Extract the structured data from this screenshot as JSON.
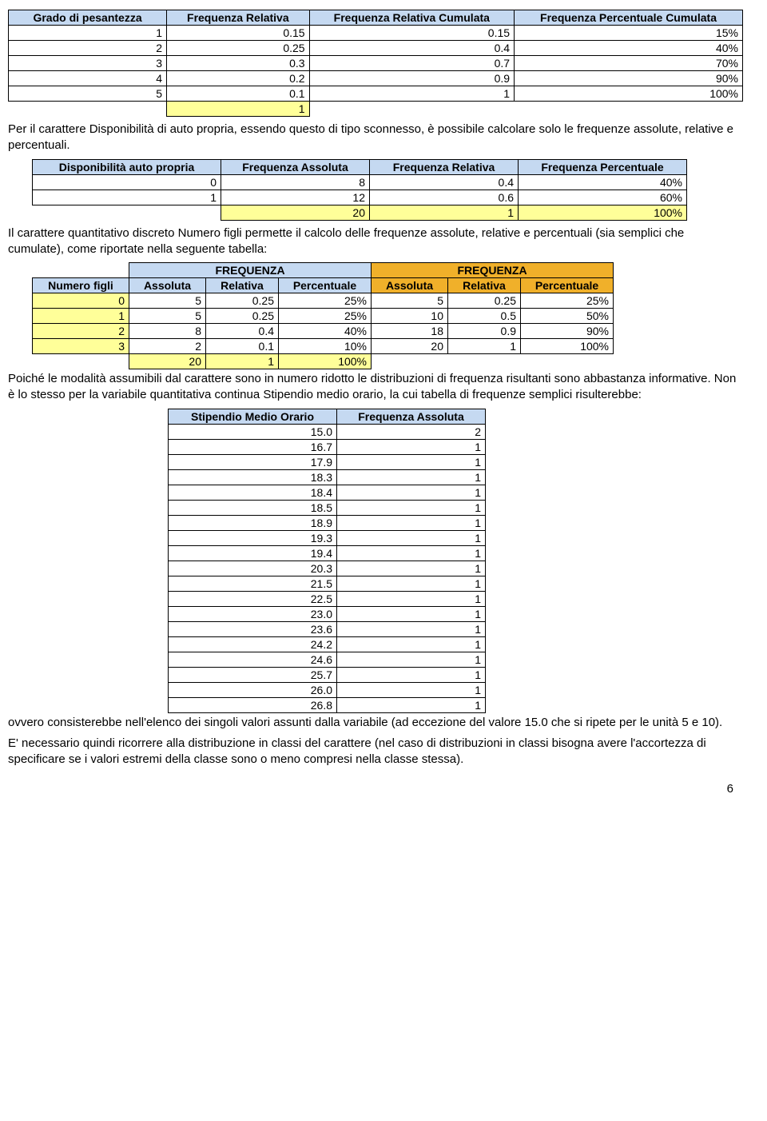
{
  "table1": {
    "columns": [
      "Grado di pesantezza",
      "Frequenza Relativa",
      "Frequenza Relativa Cumulata",
      "Frequenza Percentuale Cumulata"
    ],
    "rows": [
      [
        "1",
        "0.15",
        "0.15",
        "15%"
      ],
      [
        "2",
        "0.25",
        "0.4",
        "40%"
      ],
      [
        "3",
        "0.3",
        "0.7",
        "70%"
      ],
      [
        "4",
        "0.2",
        "0.9",
        "90%"
      ],
      [
        "5",
        "0.1",
        "1",
        "100%"
      ]
    ],
    "total": [
      "",
      "1",
      "",
      ""
    ]
  },
  "para1": "Per il carattere Disponibilità di auto propria, essendo questo di tipo sconnesso, è possibile calcolare solo le frequenze assolute, relative e percentuali.",
  "table2": {
    "columns": [
      "Disponibilità auto propria",
      "Frequenza Assoluta",
      "Frequenza Relativa",
      "Frequenza Percentuale"
    ],
    "rows": [
      [
        "0",
        "8",
        "0.4",
        "40%"
      ],
      [
        "1",
        "12",
        "0.6",
        "60%"
      ]
    ],
    "total": [
      "",
      "20",
      "1",
      "100%"
    ]
  },
  "para2": "Il carattere quantitativo discreto Numero figli permette il calcolo delle frequenze assolute, relative e percentuali (sia semplici che cumulate), come riportate nella seguente tabella:",
  "table3": {
    "group1": "FREQUENZA",
    "group2": "FREQUENZA",
    "columns": [
      "Numero figli",
      "Assoluta",
      "Relativa",
      "Percentuale",
      "Assoluta",
      "Relativa",
      "Percentuale"
    ],
    "rows": [
      [
        "0",
        "5",
        "0.25",
        "25%",
        "5",
        "0.25",
        "25%"
      ],
      [
        "1",
        "5",
        "0.25",
        "25%",
        "10",
        "0.5",
        "50%"
      ],
      [
        "2",
        "8",
        "0.4",
        "40%",
        "18",
        "0.9",
        "90%"
      ],
      [
        "3",
        "2",
        "0.1",
        "10%",
        "20",
        "1",
        "100%"
      ]
    ],
    "total": [
      "",
      "20",
      "1",
      "100%",
      "",
      "",
      ""
    ]
  },
  "para3": "Poiché le modalità assumibili dal carattere sono in numero ridotto le distribuzioni di frequenza risultanti sono abbastanza informative. Non è lo stesso per la variabile quantitativa continua Stipendio medio orario, la cui tabella di frequenze semplici risulterebbe:",
  "table4": {
    "columns": [
      "Stipendio Medio Orario",
      "Frequenza Assoluta"
    ],
    "rows": [
      [
        "15.0",
        "2"
      ],
      [
        "16.7",
        "1"
      ],
      [
        "17.9",
        "1"
      ],
      [
        "18.3",
        "1"
      ],
      [
        "18.4",
        "1"
      ],
      [
        "18.5",
        "1"
      ],
      [
        "18.9",
        "1"
      ],
      [
        "19.3",
        "1"
      ],
      [
        "19.4",
        "1"
      ],
      [
        "20.3",
        "1"
      ],
      [
        "21.5",
        "1"
      ],
      [
        "22.5",
        "1"
      ],
      [
        "23.0",
        "1"
      ],
      [
        "23.6",
        "1"
      ],
      [
        "24.2",
        "1"
      ],
      [
        "24.6",
        "1"
      ],
      [
        "25.7",
        "1"
      ],
      [
        "26.0",
        "1"
      ],
      [
        "26.8",
        "1"
      ]
    ]
  },
  "para4": "ovvero consisterebbe nell'elenco dei singoli valori assunti dalla variabile (ad eccezione del valore 15.0 che si ripete per le unità 5 e 10).",
  "para5": "E' necessario quindi ricorrere alla distribuzione in classi del carattere (nel caso di distribuzioni in classi bisogna avere l'accortezza di specificare se i valori estremi della classe sono o meno compresi nella classe stessa).",
  "pagenum": "6"
}
